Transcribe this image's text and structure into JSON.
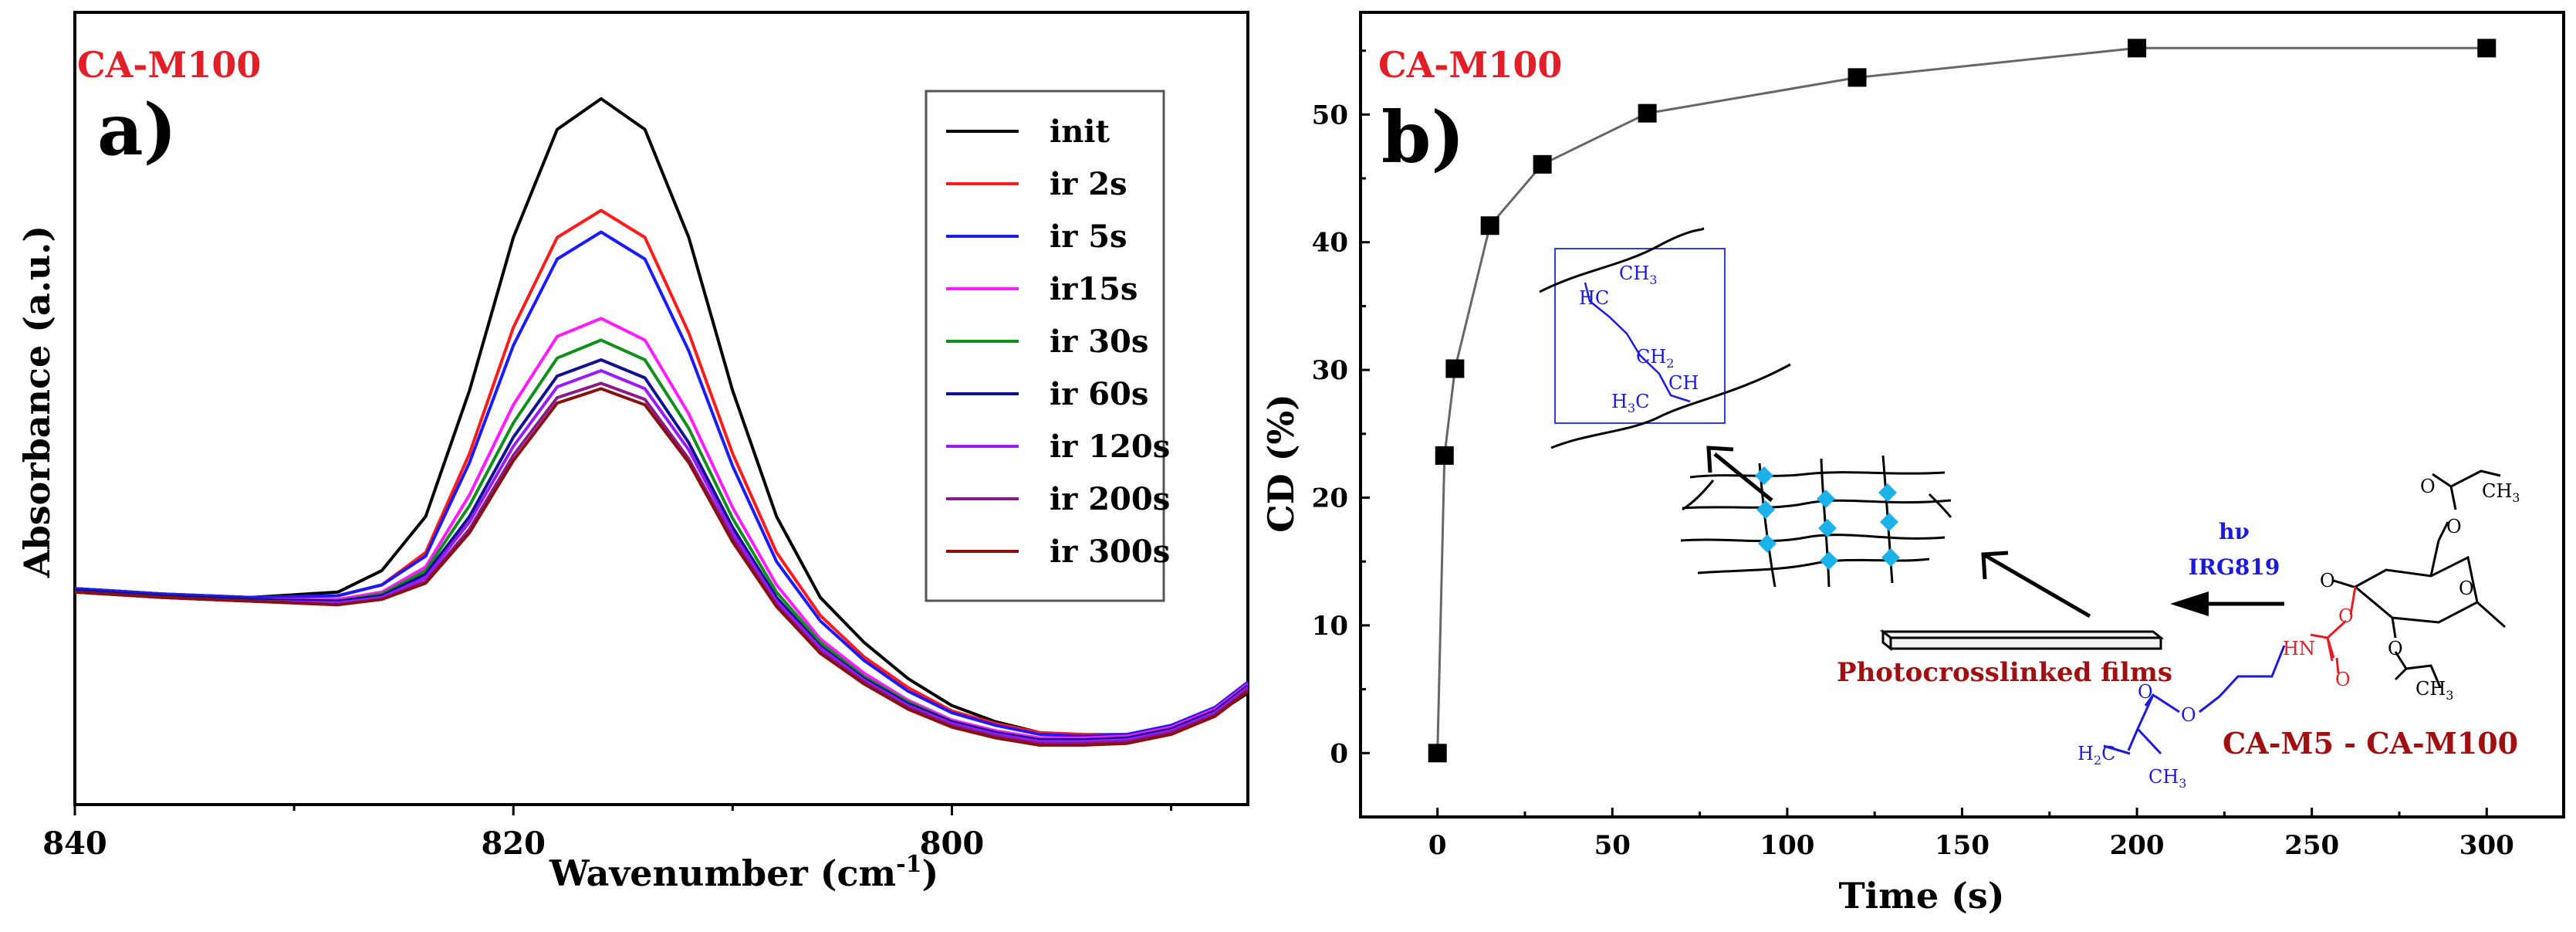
{
  "colors": {
    "title": "#e41e26",
    "axis": "#000000",
    "gray_line": "#666666",
    "scheme_blue": "#1a1adb",
    "scheme_red": "#e41e26",
    "film_label": "#a01010",
    "dot_cyan": "#1ab2e8"
  },
  "chart_data": [
    {
      "id": "panel-a",
      "type": "line",
      "panel_label": "a)",
      "title": "CA-M100",
      "xlabel": "Wavenumber (cm",
      "xlabel_sup": "-1",
      "xlabel_close": ")",
      "ylabel": "Absorbance (a.u.)",
      "xlim": [
        840,
        786.5
      ],
      "ylim": [
        -0.2,
        4.2
      ],
      "x_ticks": [
        840,
        820,
        800
      ],
      "x_minor_ticks": [
        830,
        810,
        790
      ],
      "x": [
        840,
        836,
        832,
        828,
        826,
        824,
        822,
        820,
        818,
        816,
        814,
        812,
        810,
        808,
        806,
        804,
        802,
        800,
        798,
        796,
        794,
        792,
        790,
        788,
        786.5
      ],
      "series": [
        {
          "name": "init",
          "color": "#000000",
          "values": [
            1.0,
            0.97,
            0.95,
            0.98,
            1.1,
            1.4,
            2.1,
            2.95,
            3.55,
            3.72,
            3.55,
            2.95,
            2.1,
            1.4,
            0.95,
            0.7,
            0.5,
            0.35,
            0.26,
            0.2,
            0.18,
            0.18,
            0.22,
            0.3,
            0.42
          ]
        },
        {
          "name": "ir 2s",
          "color": "#ff1a1a",
          "values": [
            1.0,
            0.97,
            0.95,
            0.96,
            1.02,
            1.2,
            1.75,
            2.45,
            2.95,
            3.1,
            2.95,
            2.42,
            1.75,
            1.2,
            0.85,
            0.62,
            0.45,
            0.32,
            0.25,
            0.2,
            0.19,
            0.19,
            0.24,
            0.34,
            0.48
          ]
        },
        {
          "name": "ir 5s",
          "color": "#1a1aff",
          "values": [
            1.0,
            0.97,
            0.95,
            0.96,
            1.02,
            1.18,
            1.7,
            2.35,
            2.83,
            2.98,
            2.83,
            2.32,
            1.68,
            1.15,
            0.82,
            0.6,
            0.43,
            0.31,
            0.24,
            0.19,
            0.18,
            0.19,
            0.24,
            0.34,
            0.48
          ]
        },
        {
          "name": "ir15s",
          "color": "#ff1aff",
          "values": [
            0.99,
            0.96,
            0.94,
            0.94,
            0.98,
            1.12,
            1.52,
            2.02,
            2.4,
            2.5,
            2.38,
            1.97,
            1.45,
            1.02,
            0.72,
            0.53,
            0.38,
            0.27,
            0.21,
            0.17,
            0.17,
            0.18,
            0.23,
            0.33,
            0.47
          ]
        },
        {
          "name": "ir 30s",
          "color": "#10901a",
          "values": [
            0.99,
            0.96,
            0.94,
            0.93,
            0.97,
            1.1,
            1.46,
            1.92,
            2.28,
            2.38,
            2.27,
            1.89,
            1.39,
            0.98,
            0.7,
            0.51,
            0.37,
            0.26,
            0.2,
            0.16,
            0.16,
            0.17,
            0.22,
            0.32,
            0.46
          ]
        },
        {
          "name": "ir 60s",
          "color": "#101090",
          "values": [
            0.99,
            0.96,
            0.94,
            0.93,
            0.96,
            1.08,
            1.4,
            1.84,
            2.18,
            2.27,
            2.17,
            1.81,
            1.34,
            0.95,
            0.68,
            0.5,
            0.36,
            0.26,
            0.2,
            0.16,
            0.16,
            0.17,
            0.22,
            0.32,
            0.46
          ]
        },
        {
          "name": "ir 120s",
          "color": "#9a1aff",
          "values": [
            0.98,
            0.95,
            0.93,
            0.92,
            0.95,
            1.06,
            1.37,
            1.79,
            2.12,
            2.21,
            2.11,
            1.77,
            1.31,
            0.93,
            0.67,
            0.49,
            0.35,
            0.25,
            0.19,
            0.15,
            0.15,
            0.16,
            0.21,
            0.31,
            0.45
          ]
        },
        {
          "name": "ir 200s",
          "color": "#8a1a8a",
          "values": [
            0.98,
            0.95,
            0.93,
            0.91,
            0.94,
            1.04,
            1.33,
            1.74,
            2.06,
            2.14,
            2.05,
            1.72,
            1.28,
            0.91,
            0.65,
            0.48,
            0.34,
            0.24,
            0.18,
            0.14,
            0.14,
            0.15,
            0.2,
            0.3,
            0.44
          ]
        },
        {
          "name": "ir 300s",
          "color": "#8a1010",
          "values": [
            0.98,
            0.95,
            0.93,
            0.91,
            0.94,
            1.03,
            1.31,
            1.71,
            2.03,
            2.11,
            2.02,
            1.7,
            1.26,
            0.9,
            0.64,
            0.47,
            0.33,
            0.23,
            0.17,
            0.13,
            0.13,
            0.14,
            0.19,
            0.29,
            0.43
          ]
        }
      ],
      "legend_position": "top-right"
    },
    {
      "id": "panel-b",
      "type": "scatter",
      "panel_label": "b)",
      "title": "CA-M100",
      "xlabel": "Time (s)",
      "ylabel": "CD (%)",
      "xlim": [
        -22,
        322
      ],
      "ylim": [
        -5,
        58
      ],
      "x_ticks": [
        0,
        50,
        100,
        150,
        200,
        250,
        300
      ],
      "y_ticks": [
        0,
        10,
        20,
        30,
        40,
        50
      ],
      "x": [
        0,
        2,
        5,
        15,
        30,
        60,
        120,
        200,
        300
      ],
      "values": [
        0,
        23.3,
        30.1,
        41.3,
        46.1,
        50.1,
        52.9,
        55.2,
        55.2
      ],
      "marker": "square",
      "connected": true
    }
  ],
  "scheme": {
    "hv": "hν",
    "initiator": "IRG819",
    "film_label": "Photocrosslinked films",
    "monomer_label": "CA-M5 - CA-M100",
    "inset_labels": {
      "ch3_top": "CH",
      "ch3_top_sub": "3",
      "hc": "HC",
      "ch2": "CH",
      "ch2_sub": "2",
      "ch": "CH",
      "h3c": "H",
      "h3c_sub": "3",
      "h3c_c": "C"
    },
    "atoms": {
      "o": "O",
      "hn": "HN",
      "ch3": "CH",
      "ch3_sub": "3",
      "h2c": "H",
      "h2c_sub": "2",
      "h2c_c": "C"
    }
  }
}
